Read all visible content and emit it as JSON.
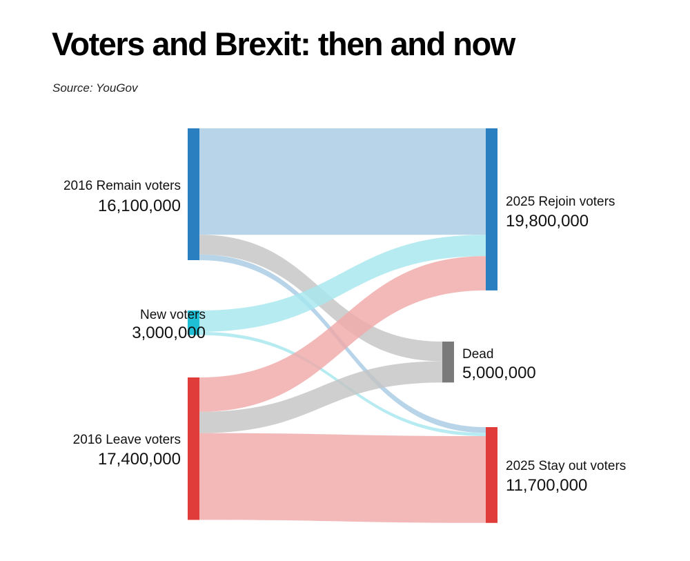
{
  "title": "Voters and Brexit: then and now",
  "source": "Source: YouGov",
  "chart_data": {
    "type": "sankey",
    "nodes": [
      {
        "id": "remain",
        "column": "left",
        "label": "2016 Remain voters",
        "value_label": "16,100,000",
        "value": 16100000,
        "color": "#2a7fc0"
      },
      {
        "id": "new",
        "column": "left",
        "label": "New voters",
        "value_label": "3,000,000",
        "value": 3000000,
        "color": "#1fc0d6"
      },
      {
        "id": "leave",
        "column": "left",
        "label": "2016 Leave voters",
        "value_label": "17,400,000",
        "value": 17400000,
        "color": "#e03c3a"
      },
      {
        "id": "rejoin",
        "column": "right",
        "label": "2025 Rejoin voters",
        "value_label": "19,800,000",
        "value": 19800000,
        "color": "#2a7fc0"
      },
      {
        "id": "dead",
        "column": "middle",
        "label": "Dead",
        "value_label": "5,000,000",
        "value": 5000000,
        "color": "#7a7a7a"
      },
      {
        "id": "stayout",
        "column": "right",
        "label": "2025 Stay out voters",
        "value_label": "11,700,000",
        "value": 11700000,
        "color": "#e03c3a"
      }
    ],
    "links": [
      {
        "source": "remain",
        "target": "rejoin",
        "value": 13000000,
        "color": "#a8cbe4"
      },
      {
        "source": "remain",
        "target": "dead",
        "value": 2400000,
        "color": "#c4c4c4"
      },
      {
        "source": "remain",
        "target": "stayout",
        "value": 700000,
        "color": "#a8cbe4"
      },
      {
        "source": "new",
        "target": "rejoin",
        "value": 2600000,
        "color": "#a6e6ee"
      },
      {
        "source": "new",
        "target": "stayout",
        "value": 400000,
        "color": "#a6e6ee"
      },
      {
        "source": "leave",
        "target": "rejoin",
        "value": 4200000,
        "color": "#f0aaa9"
      },
      {
        "source": "leave",
        "target": "dead",
        "value": 2600000,
        "color": "#c4c4c4"
      },
      {
        "source": "leave",
        "target": "stayout",
        "value": 10600000,
        "color": "#f0aaa9"
      }
    ]
  }
}
